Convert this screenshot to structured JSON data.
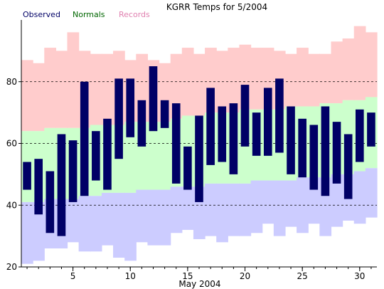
{
  "chart_data": {
    "type": "bar",
    "title": "KGRR Temps for 5/2004",
    "xlabel": "May 2004",
    "ylabel": "",
    "ylim": [
      20,
      100
    ],
    "xlim": [
      0.5,
      31.5
    ],
    "y_ticks": [
      20,
      40,
      60,
      80
    ],
    "x_ticks": [
      5,
      10,
      15,
      20,
      25,
      30
    ],
    "gridlines_y": [
      40,
      60,
      80
    ],
    "legend": {
      "placement": "top-left",
      "entries": [
        {
          "name": "Observed",
          "color": "#000066"
        },
        {
          "name": "Normals",
          "color": "#006600"
        },
        {
          "name": "Records",
          "color": "#e080b0"
        }
      ]
    },
    "colors": {
      "observed": "#000066",
      "normal_band": "#ccffcc",
      "record_high_band": "#ffcccc",
      "record_low_band": "#ccccff",
      "grid": "#000000",
      "axis": "#000000"
    },
    "days": [
      1,
      2,
      3,
      4,
      5,
      6,
      7,
      8,
      9,
      10,
      11,
      12,
      13,
      14,
      15,
      16,
      17,
      18,
      19,
      20,
      21,
      22,
      23,
      24,
      25,
      26,
      27,
      28,
      29,
      30,
      31
    ],
    "record_high": [
      87,
      86,
      91,
      90,
      96,
      90,
      89,
      89,
      90,
      87,
      89,
      87,
      86,
      89,
      91,
      89,
      91,
      90,
      91,
      92,
      91,
      91,
      90,
      89,
      91,
      89,
      89,
      93,
      94,
      98,
      96
    ],
    "record_low": [
      21,
      22,
      26,
      26,
      28,
      25,
      25,
      27,
      23,
      22,
      28,
      27,
      27,
      31,
      32,
      29,
      30,
      28,
      30,
      30,
      31,
      34,
      30,
      33,
      31,
      34,
      30,
      33,
      35,
      34,
      36
    ],
    "normal_high": [
      64,
      64,
      65,
      65,
      65,
      65,
      66,
      66,
      66,
      67,
      67,
      67,
      67,
      68,
      69,
      69,
      70,
      70,
      70,
      71,
      71,
      71,
      71,
      72,
      72,
      72,
      73,
      73,
      74,
      74,
      75
    ],
    "normal_low": [
      41,
      41,
      42,
      42,
      42,
      43,
      43,
      44,
      44,
      44,
      45,
      45,
      45,
      46,
      46,
      46,
      47,
      47,
      47,
      47,
      48,
      48,
      48,
      48,
      49,
      49,
      49,
      50,
      50,
      51,
      52
    ],
    "observed_high": [
      54,
      55,
      51,
      63,
      61,
      80,
      64,
      68,
      81,
      81,
      74,
      85,
      74,
      73,
      59,
      69,
      78,
      72,
      73,
      79,
      70,
      78,
      81,
      72,
      68,
      66,
      72,
      67,
      63,
      71,
      70
    ],
    "observed_low": [
      45,
      37,
      31,
      30,
      41,
      43,
      48,
      45,
      55,
      62,
      59,
      64,
      65,
      47,
      45,
      41,
      53,
      54,
      50,
      59,
      56,
      56,
      57,
      50,
      49,
      45,
      43,
      47,
      42,
      54,
      59
    ]
  }
}
